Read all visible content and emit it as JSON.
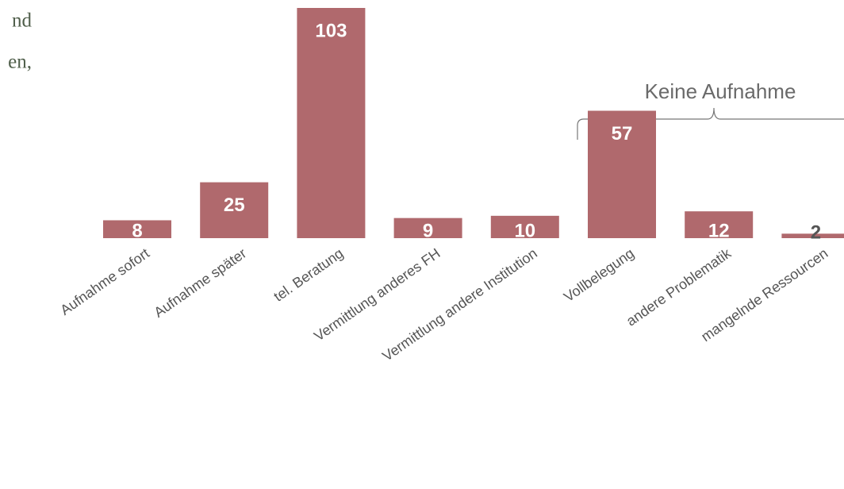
{
  "text_fragments": [
    "nd",
    "en,"
  ],
  "chart_data": {
    "type": "bar",
    "categories": [
      "Aufnahme sofort",
      "Aufnahme später",
      "tel. Beratung",
      "Vermittlung anderes FH",
      "Vermittlung andere Institution",
      "Vollbelegung",
      "andere Problematik",
      "mangelnde Ressourcen"
    ],
    "values": [
      8,
      25,
      103,
      9,
      10,
      57,
      12,
      2
    ],
    "color": "#b0696d",
    "annotation": "Keine Aufnahme"
  }
}
